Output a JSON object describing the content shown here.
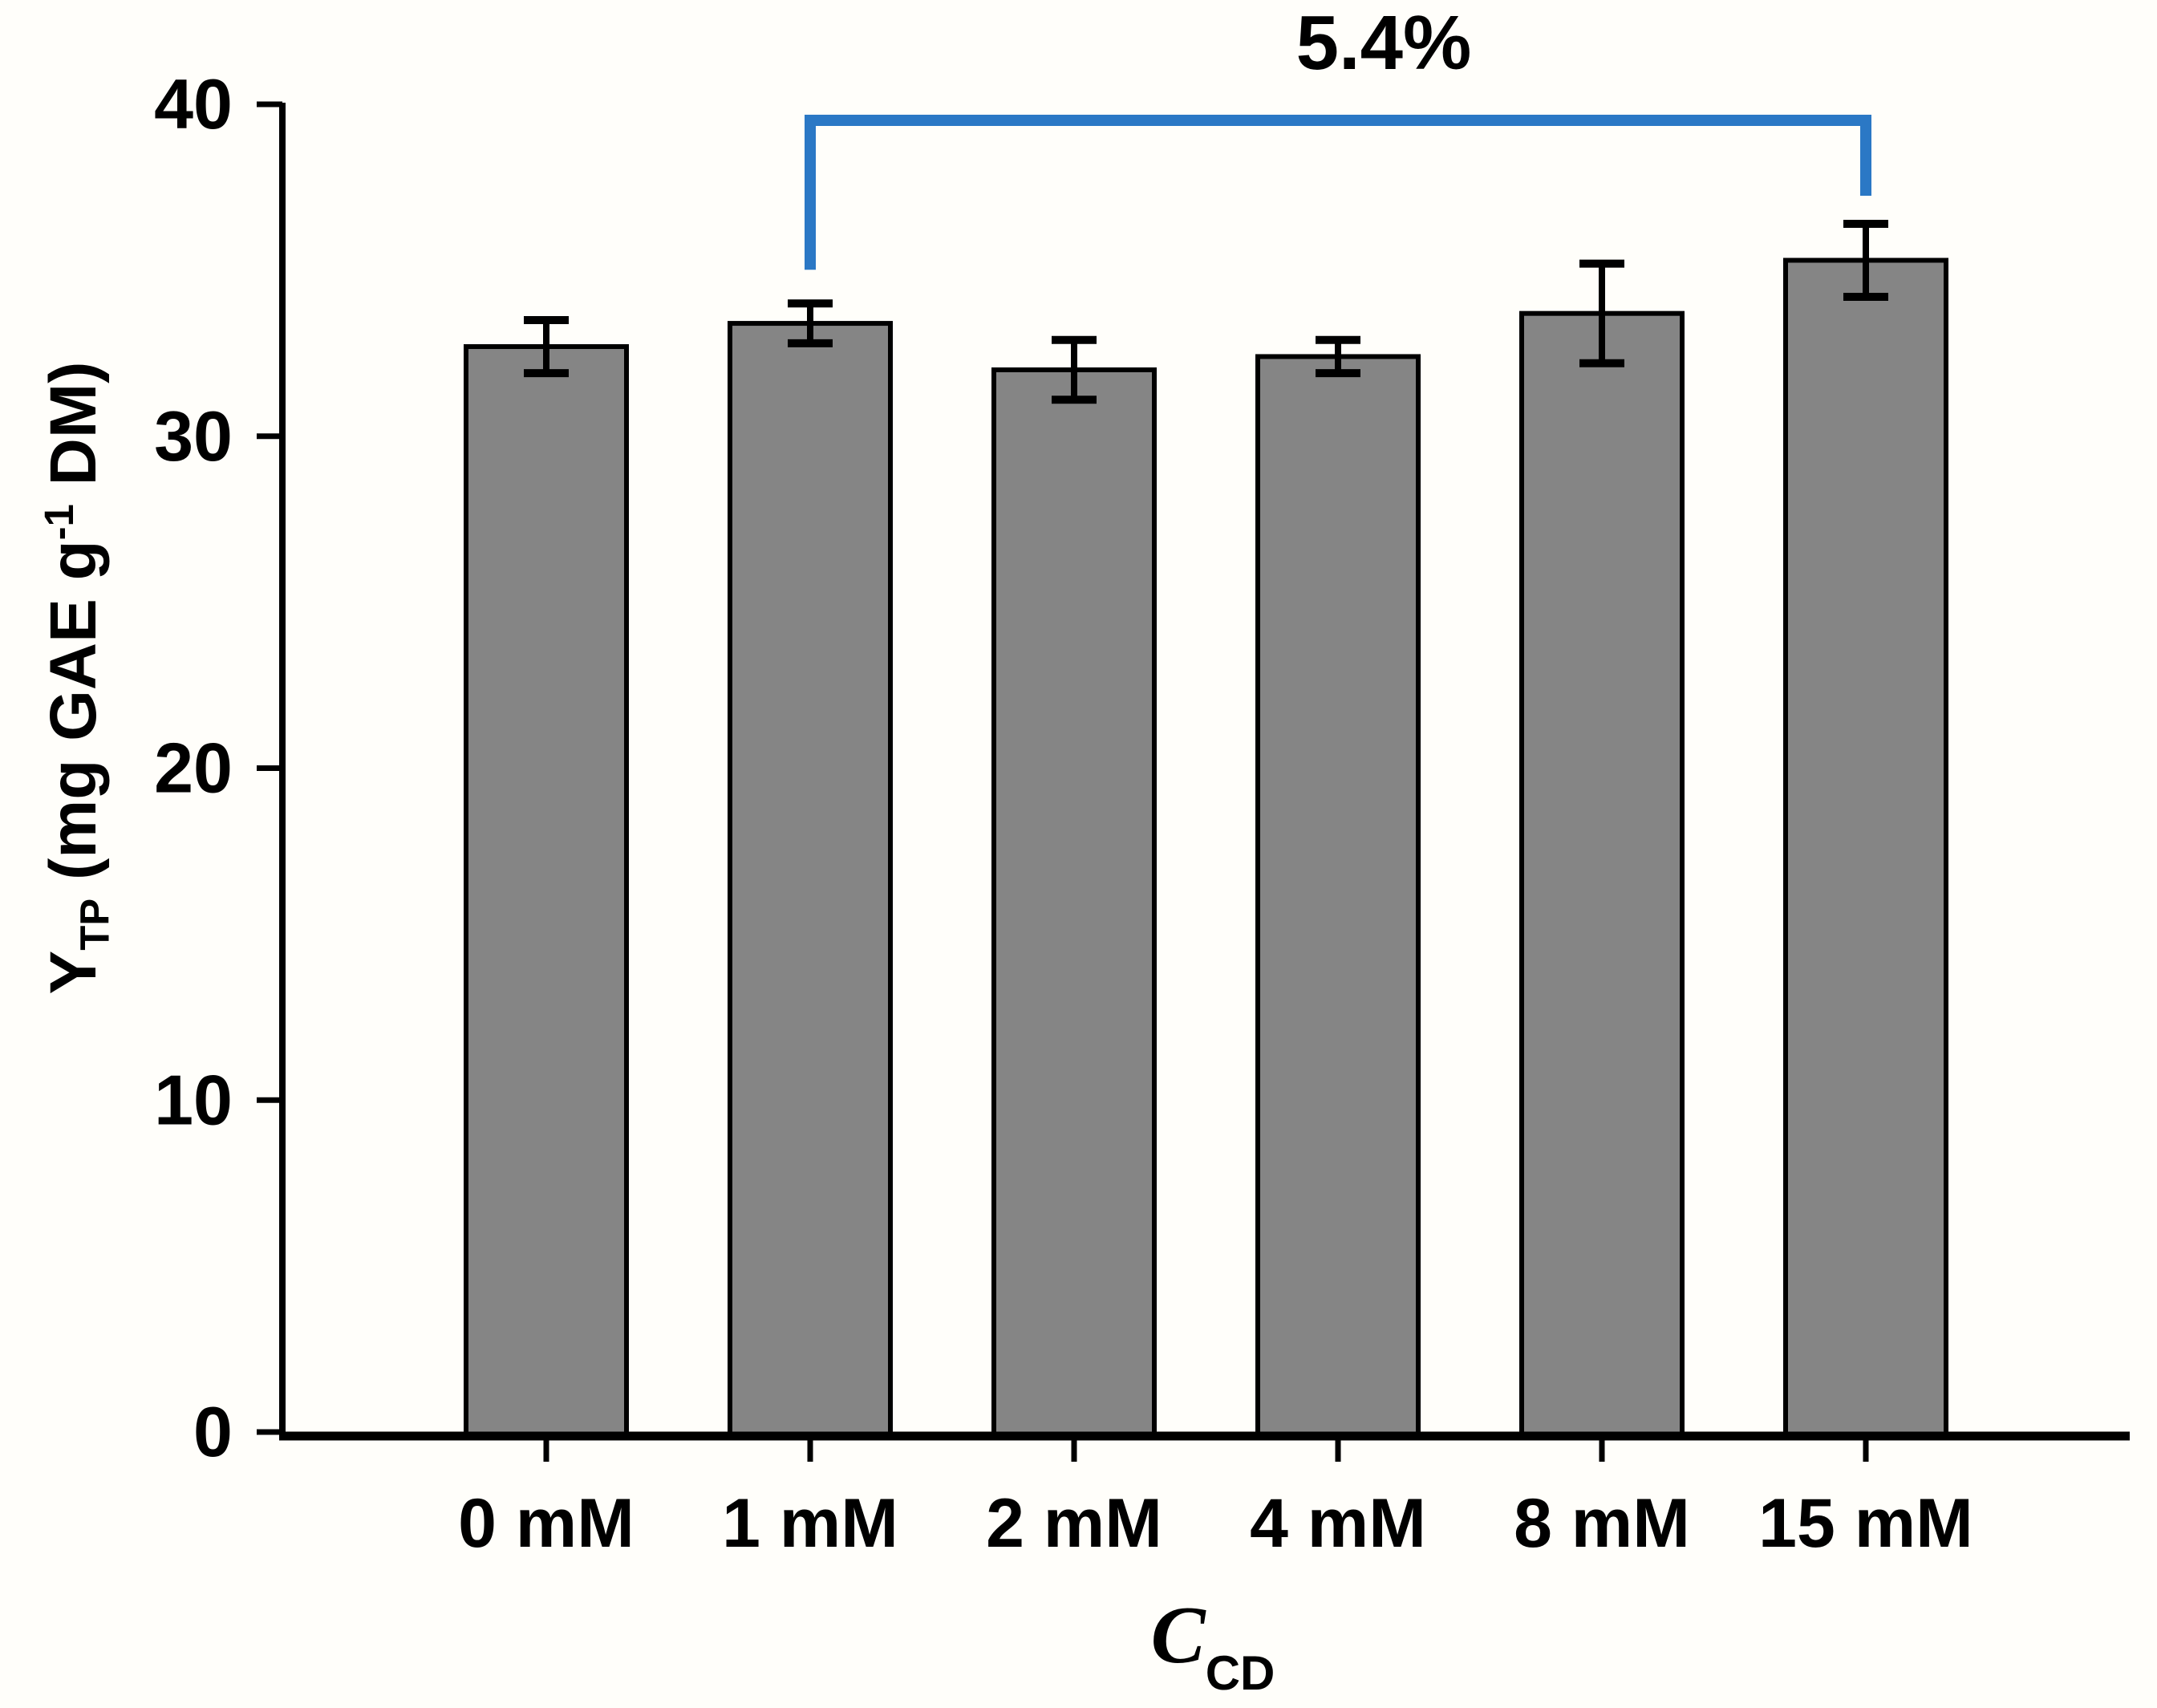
{
  "labels": {
    "y_main": "Y",
    "y_sub": "TP",
    "y_mid": " (mg GAE g",
    "y_sup": "-1",
    "y_end": " DM)",
    "x_main": "C",
    "x_sub": "CD"
  },
  "chart_data": {
    "type": "bar",
    "categories": [
      "0 mM",
      "1 mM",
      "2 mM",
      "4 mM",
      "8 mM",
      "15 mM"
    ],
    "values": [
      32.7,
      33.4,
      32.0,
      32.4,
      33.7,
      35.3
    ],
    "errors": [
      0.8,
      0.6,
      0.9,
      0.5,
      1.5,
      1.1
    ],
    "title": "",
    "xlabel": "C_CD",
    "ylabel": "Y_TP (mg GAE g-1 DM)",
    "ylim": [
      0,
      40
    ],
    "yticks": [
      0,
      10,
      20,
      30,
      40
    ],
    "grid": false,
    "legend": "none",
    "bar_color": "#858585",
    "bar_edge_color": "#000000",
    "error_bar_color": "#000000",
    "axis_color": "#000000",
    "background_color": "#fffefa",
    "annotation": {
      "label": "5.4%",
      "from_category": "1 mM",
      "to_category": "15 mM",
      "color": "#2b78c5"
    }
  }
}
